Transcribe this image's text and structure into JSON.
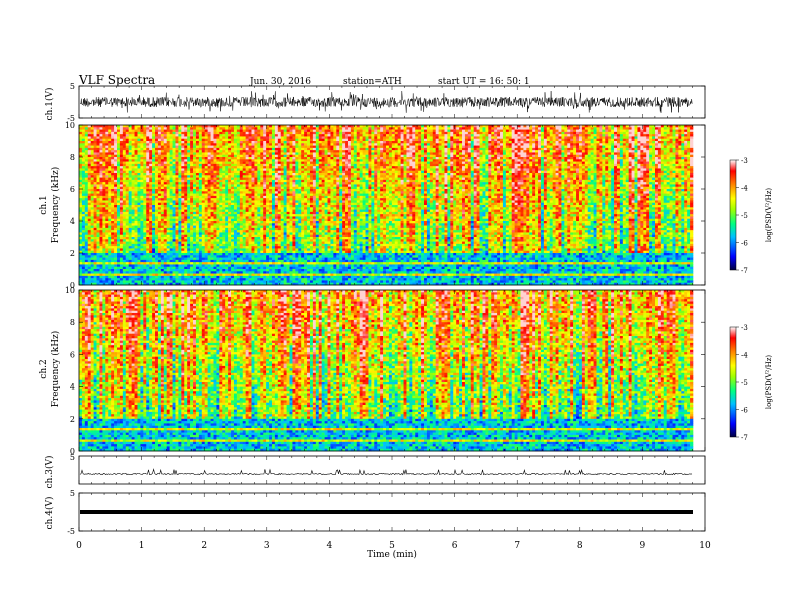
{
  "header": {
    "title": "VLF  Spectra",
    "date": "Jun. 30, 2016",
    "station": "station=ATH",
    "start": "start  UT  =    16: 50: 1"
  },
  "chart_data": [
    {
      "type": "line",
      "ylabel": "ch.1(V)",
      "yticks": [
        "5",
        "-5"
      ],
      "ylim": [
        -5,
        5
      ],
      "xlim": [
        0,
        10
      ],
      "description_style": "dense black waveform noise"
    },
    {
      "type": "heatmap",
      "ylabel_line1": "ch.1",
      "ylabel_line2": "Frequency  (kHz)",
      "yticks": [
        "0",
        "2",
        "4",
        "6",
        "8",
        "10"
      ],
      "ylim": [
        0,
        10
      ],
      "xlim": [
        0,
        10
      ],
      "colorbar": {
        "ticks": [
          "-3",
          "-4",
          "-5",
          "-6",
          "-7"
        ],
        "label": "log(PSD(V²/Hz)"
      }
    },
    {
      "type": "heatmap",
      "ylabel_line1": "ch.2",
      "ylabel_line2": "Frequency  (kHz)",
      "yticks": [
        "0",
        "2",
        "4",
        "6",
        "8",
        "10"
      ],
      "ylim": [
        0,
        10
      ],
      "xlim": [
        0,
        10
      ],
      "colorbar": {
        "ticks": [
          "-3",
          "-4",
          "-5",
          "-6",
          "-7"
        ],
        "label": "log(PSD(V²/Hz)"
      }
    },
    {
      "type": "line",
      "ylabel": "ch.3(V)",
      "yticks": [
        "5"
      ],
      "ylim": [
        -5,
        5
      ],
      "xlim": [
        0,
        10
      ]
    },
    {
      "type": "line",
      "ylabel": "ch.4(V)",
      "yticks": [
        "5",
        "-5"
      ],
      "ylim": [
        -5,
        5
      ],
      "xlim": [
        0,
        10
      ],
      "value": 0
    }
  ],
  "xaxis": {
    "label": "Time  (min)",
    "ticks": [
      "0",
      "1",
      "2",
      "3",
      "4",
      "5",
      "6",
      "7",
      "8",
      "9",
      "10"
    ],
    "range": [
      0,
      10
    ]
  },
  "colors": {
    "spectrum_scale": [
      "#000080",
      "#0000ff",
      "#00c0ff",
      "#00ff80",
      "#80ff00",
      "#ffff00",
      "#ff8000",
      "#ff0000",
      "#ffc0c0"
    ]
  }
}
